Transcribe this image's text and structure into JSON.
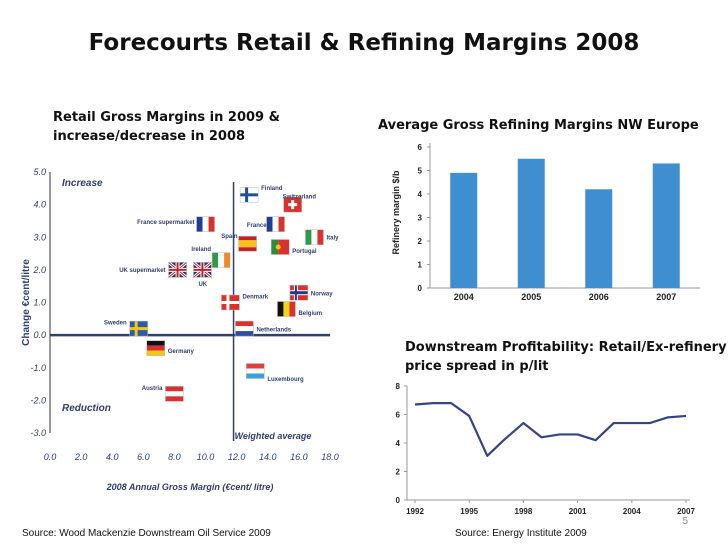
{
  "slide": {
    "title": "Forecourts Retail & Refining Margins 2008",
    "page_number": "5"
  },
  "scatter": {
    "subtitle_line1": "Retail Gross Margins in 2009 &",
    "subtitle_line2": "increase/decrease in 2008",
    "source": "Source: Wood Mackenzie Downstream Oil Service 2009"
  },
  "bars": {
    "subtitle": "Average Gross Refining Margins NW Europe"
  },
  "line": {
    "subtitle_line1": "Downstream Profitability: Retail/Ex-refinery",
    "subtitle_line2": "price spread in p/lit",
    "source": "Source: Energy Institute 2009"
  },
  "chart_data": [
    {
      "type": "scatter",
      "xlabel": "2008 Annual Gross Margin (€cent/ litre)",
      "ylabel": "Change €cent/litre",
      "xlim": [
        0,
        18
      ],
      "ylim": [
        -3,
        5
      ],
      "xticks": [
        "0.0",
        "2.0",
        "4.0",
        "6.0",
        "8.0",
        "10.0",
        "12.0",
        "14.0",
        "16.0",
        "18.0"
      ],
      "yticks": [
        "5.0",
        "4.0",
        "3.0",
        "2.0",
        "1.0",
        "0.0",
        "-1.0",
        "-2.0",
        "-3.0"
      ],
      "reference_line": {
        "label": "Weighted average",
        "x": 11.8
      },
      "annotations": [
        "Increase",
        "Reduction"
      ],
      "points": [
        {
          "label": "Finland",
          "x": 12.8,
          "y": 4.3,
          "flag": "finland"
        },
        {
          "label": "Switzerland",
          "x": 15.6,
          "y": 4.0,
          "flag": "switzerland"
        },
        {
          "label": "France supermarket",
          "x": 10.0,
          "y": 3.4,
          "flag": "france"
        },
        {
          "label": "France",
          "x": 14.5,
          "y": 3.4,
          "flag": "france"
        },
        {
          "label": "Spain",
          "x": 12.7,
          "y": 2.8,
          "flag": "spain"
        },
        {
          "label": "Portugal",
          "x": 14.8,
          "y": 2.7,
          "flag": "portugal"
        },
        {
          "label": "Italy",
          "x": 17.0,
          "y": 3.0,
          "flag": "italy"
        },
        {
          "label": "Ireland",
          "x": 11.0,
          "y": 2.3,
          "flag": "ireland"
        },
        {
          "label": "UK supermarket",
          "x": 8.2,
          "y": 2.0,
          "flag": "uk"
        },
        {
          "label": "UK",
          "x": 9.8,
          "y": 2.0,
          "flag": "uk"
        },
        {
          "label": "Denmark",
          "x": 11.6,
          "y": 1.0,
          "flag": "denmark"
        },
        {
          "label": "Norway",
          "x": 16.0,
          "y": 1.3,
          "flag": "norway"
        },
        {
          "label": "Belgium",
          "x": 15.2,
          "y": 0.8,
          "flag": "belgium"
        },
        {
          "label": "Netherlands",
          "x": 12.5,
          "y": 0.2,
          "flag": "netherlands"
        },
        {
          "label": "Sweden",
          "x": 5.7,
          "y": 0.2,
          "flag": "sweden"
        },
        {
          "label": "Germany",
          "x": 6.8,
          "y": -0.4,
          "flag": "germany"
        },
        {
          "label": "Luxembourg",
          "x": 13.2,
          "y": -1.1,
          "flag": "luxembourg"
        },
        {
          "label": "Austria",
          "x": 8.0,
          "y": -1.8,
          "flag": "austria"
        }
      ]
    },
    {
      "type": "bar",
      "ylabel": "Refinery margin $/b",
      "categories": [
        "2004",
        "2005",
        "2006",
        "2007"
      ],
      "values": [
        4.9,
        5.5,
        4.2,
        5.3
      ],
      "ylim": [
        0,
        6
      ],
      "yticks": [
        "0",
        "1",
        "2",
        "3",
        "4",
        "5",
        "6"
      ],
      "color": "#3f8fd0"
    },
    {
      "type": "line",
      "x": [
        1992,
        1993,
        1994,
        1995,
        1996,
        1997,
        1998,
        1999,
        2000,
        2001,
        2002,
        2003,
        2004,
        2005,
        2006,
        2007
      ],
      "y": [
        6.7,
        6.8,
        6.8,
        5.9,
        3.1,
        4.3,
        5.4,
        4.4,
        4.6,
        4.6,
        4.2,
        5.4,
        5.4,
        5.4,
        5.8,
        5.9
      ],
      "xticks": [
        "1992",
        "1995",
        "1998",
        "2001",
        "2004",
        "2007"
      ],
      "yticks": [
        "0",
        "2",
        "4",
        "6",
        "8"
      ],
      "ylim": [
        0,
        8
      ],
      "color": "#34448a"
    }
  ]
}
